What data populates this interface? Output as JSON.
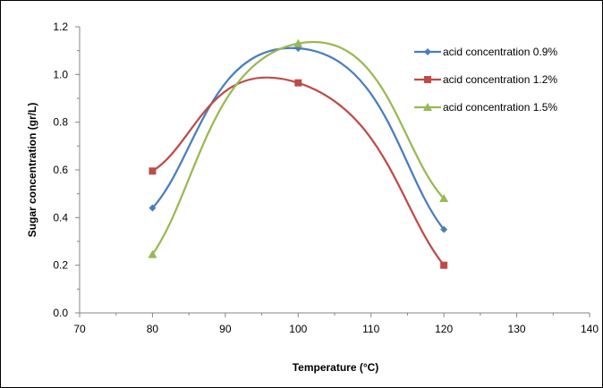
{
  "chart_data": {
    "type": "line",
    "xlabel": "Temperature (°C)",
    "ylabel": "Sugar concentration (gr/L)",
    "xlim": [
      70,
      140
    ],
    "ylim": [
      0.0,
      1.2
    ],
    "x_ticks": [
      "70",
      "80",
      "90",
      "100",
      "110",
      "120",
      "130",
      "140"
    ],
    "y_ticks": [
      "0.0",
      "0.2",
      "0.4",
      "0.6",
      "0.8",
      "1.0",
      "1.2"
    ],
    "x_ticks_values": [
      70,
      80,
      90,
      100,
      110,
      120,
      130,
      140
    ],
    "y_ticks_values": [
      0.0,
      0.2,
      0.4,
      0.6,
      0.8,
      1.0,
      1.2
    ],
    "grid": false,
    "legend_position": "top-right",
    "x": [
      80,
      100,
      120
    ],
    "series": [
      {
        "name": "acid concentration 0.9%",
        "values": [
          0.44,
          1.11,
          0.35
        ],
        "color": "#4a7ebb",
        "marker": "diamond"
      },
      {
        "name": "acid concentration 1.2%",
        "values": [
          0.595,
          0.965,
          0.2
        ],
        "color": "#be4b48",
        "marker": "square"
      },
      {
        "name": "acid concentration 1.5%",
        "values": [
          0.245,
          1.13,
          0.48
        ],
        "color": "#98b954",
        "marker": "triangle"
      }
    ]
  }
}
